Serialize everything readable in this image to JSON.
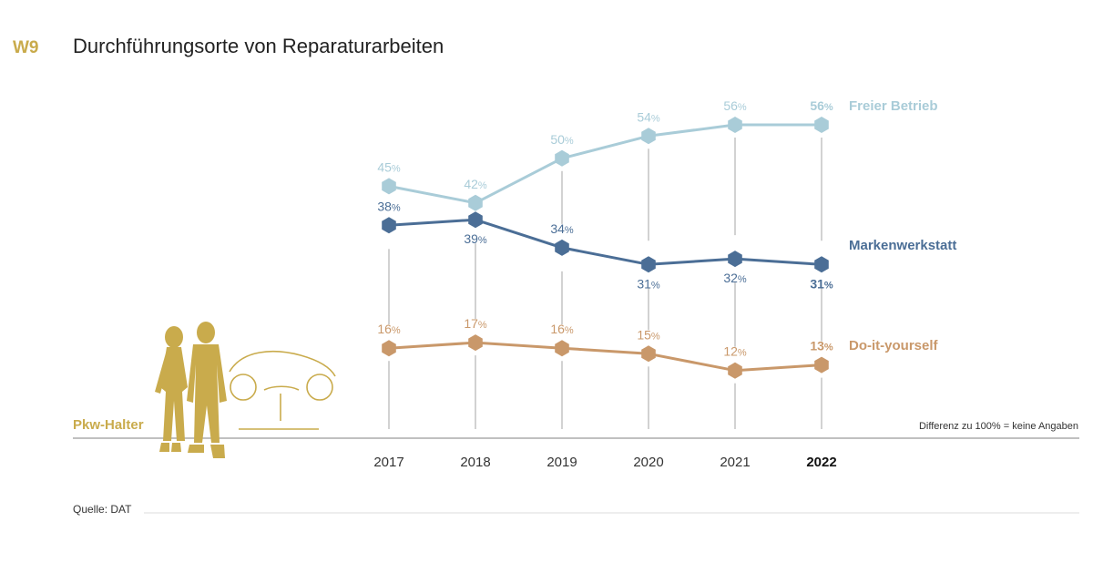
{
  "header": {
    "code": "W9",
    "title": "Durchführungsorte von Reparaturarbeiten"
  },
  "footnote": "Differenz zu 100% = keine Angaben",
  "source": "Quelle: DAT",
  "illustration": {
    "label": "Pkw-Halter",
    "icon": "couple-and-car-illustration"
  },
  "colors": {
    "gold": "#c9ab4c",
    "light": "#a9ccd8",
    "dark": "#4b6e96",
    "orange": "#c9986a",
    "grid": "#b4b4b4",
    "axis": "#9a9a9a"
  },
  "chart_data": {
    "type": "line",
    "title": "Durchführungsorte von Reparaturarbeiten",
    "x": [
      "2017",
      "2018",
      "2019",
      "2020",
      "2021",
      "2022"
    ],
    "highlight_x": "2022",
    "unit": "%",
    "ylim": [
      0,
      60
    ],
    "grid": "vertical lines per year",
    "legend": "labels right of last point",
    "series": [
      {
        "name": "Freier Betrieb",
        "values": [
          45,
          42,
          50,
          54,
          56,
          56
        ],
        "color": "#a9ccd8",
        "labels": [
          "45",
          "42",
          "50",
          "54",
          "56",
          "56"
        ]
      },
      {
        "name": "Markenwerkstatt",
        "values": [
          38,
          39,
          34,
          31,
          32,
          31
        ],
        "color": "#4b6e96",
        "labels": [
          "38",
          "39",
          "34",
          "31",
          "32",
          "31"
        ]
      },
      {
        "name": "Do-it-yourself",
        "values": [
          16,
          17,
          16,
          15,
          12,
          13
        ],
        "color": "#c9986a",
        "labels": [
          "16",
          "17",
          "16",
          "15",
          "12",
          "13"
        ]
      }
    ]
  }
}
